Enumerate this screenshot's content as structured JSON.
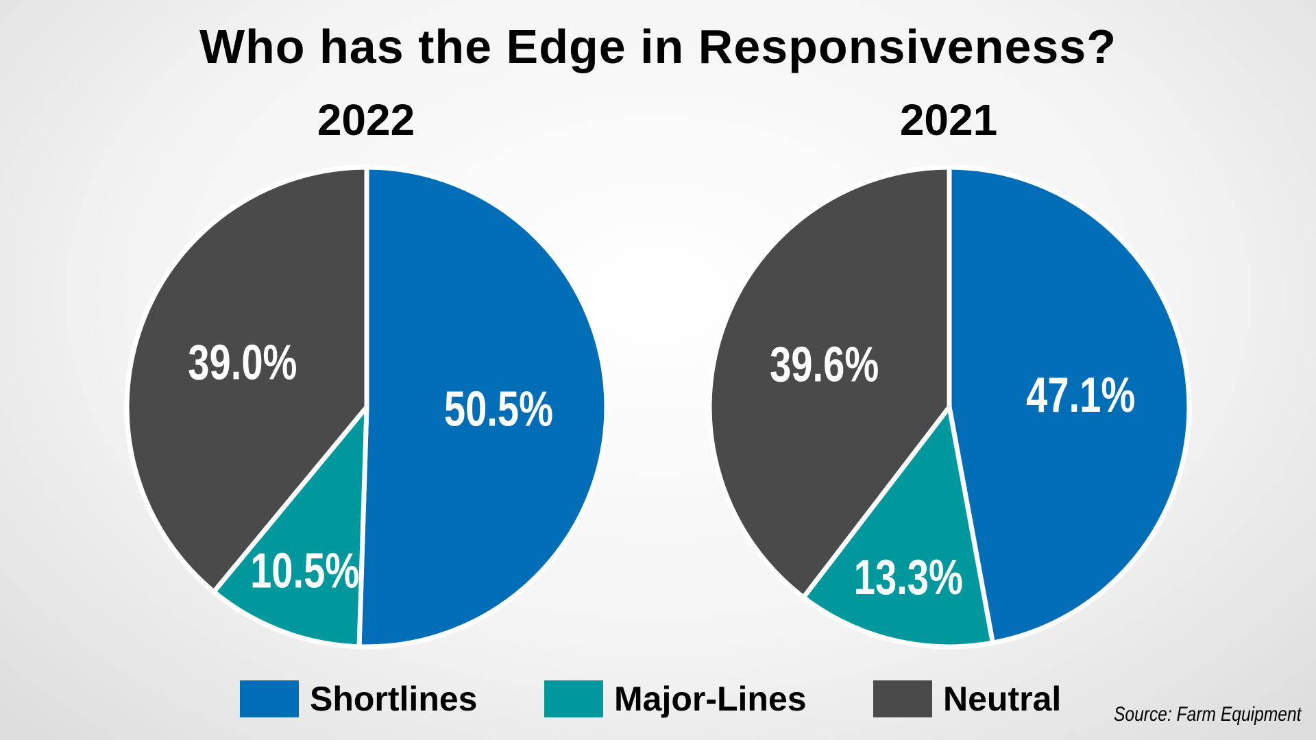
{
  "chart_data": {
    "type": "pie",
    "title": "Who has the Edge in Responsiveness?",
    "charts": [
      {
        "subtitle": "2022",
        "slices": [
          {
            "label": "Shortlines",
            "value": 50.5,
            "display": "50.5%",
            "color": "#006db6"
          },
          {
            "label": "Major-Lines",
            "value": 10.5,
            "display": "10.5%",
            "color": "#00979d"
          },
          {
            "label": "Neutral",
            "value": 39.0,
            "display": "39.0%",
            "color": "#4a4a4a"
          }
        ]
      },
      {
        "subtitle": "2021",
        "slices": [
          {
            "label": "Shortlines",
            "value": 47.1,
            "display": "47.1%",
            "color": "#006db6"
          },
          {
            "label": "Major-Lines",
            "value": 13.3,
            "display": "13.3%",
            "color": "#00979d"
          },
          {
            "label": "Neutral",
            "value": 39.6,
            "display": "39.6%",
            "color": "#4a4a4a"
          }
        ]
      }
    ],
    "legend": {
      "placement": "bottom",
      "items": [
        {
          "label": "Shortlines",
          "color": "#006db6"
        },
        {
          "label": "Major-Lines",
          "color": "#00979d"
        },
        {
          "label": "Neutral",
          "color": "#4a4a4a"
        }
      ]
    },
    "source": "Source: Farm Equipment"
  }
}
